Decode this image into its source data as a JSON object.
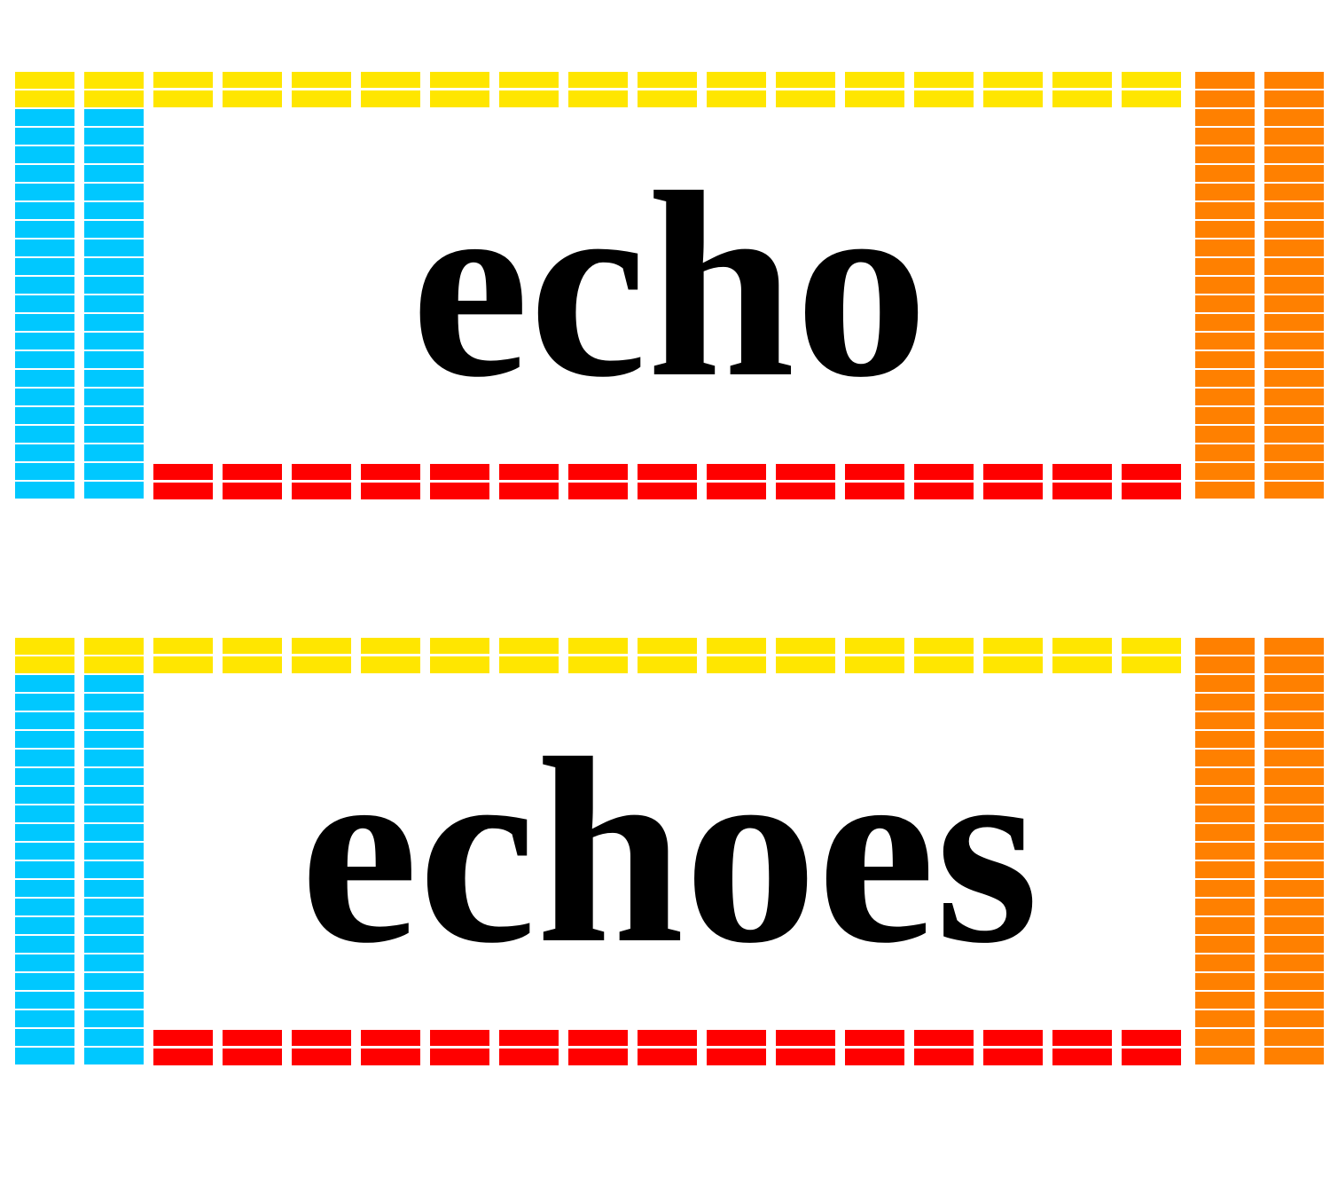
{
  "cards": [
    {
      "word": "echo"
    },
    {
      "word": "echoes"
    }
  ],
  "colors": {
    "top_border": "#FFE600",
    "left_border": "#00C8FF",
    "right_border": "#FF8000",
    "bottom_border": "#FF0000",
    "text": "#000000",
    "background": "#FFFFFF"
  }
}
